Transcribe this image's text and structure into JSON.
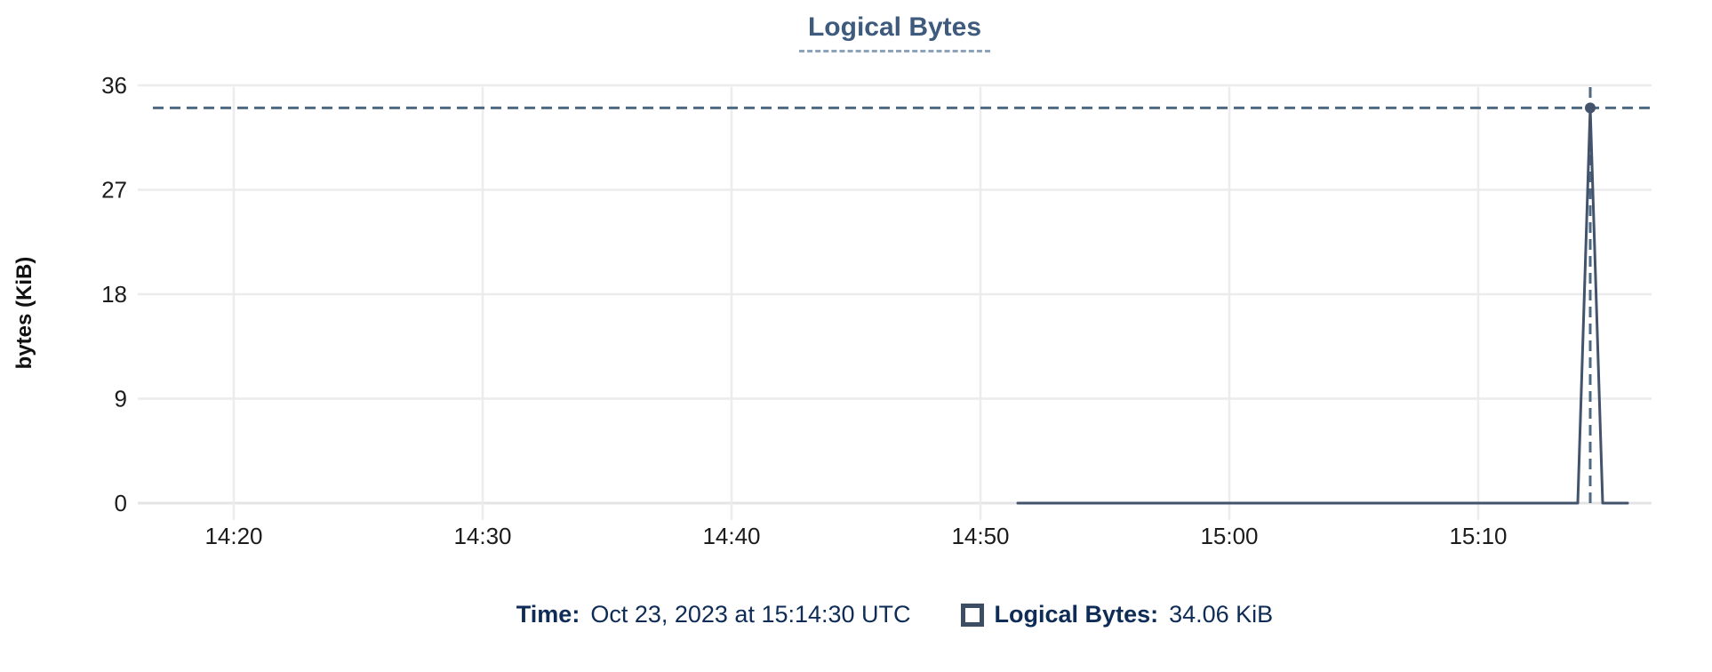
{
  "title": "Logical Bytes",
  "chart_data": {
    "type": "line",
    "title": "Logical Bytes",
    "xlabel": "",
    "ylabel": "bytes (KiB)",
    "unit": "KiB",
    "ylim": [
      0,
      36
    ],
    "y_ticks": [
      0,
      9,
      18,
      27,
      36
    ],
    "x_ticks": [
      "14:20",
      "14:30",
      "14:40",
      "14:50",
      "15:00",
      "15:10"
    ],
    "grid": true,
    "legend_position": "bottom",
    "series": [
      {
        "name": "Logical Bytes",
        "points": [
          {
            "t": "14:51:30",
            "v": 0
          },
          {
            "t": "15:14:00",
            "v": 0
          },
          {
            "t": "15:14:30",
            "v": 34.06
          },
          {
            "t": "15:15:00",
            "v": 0
          },
          {
            "t": "15:16:00",
            "v": 0
          }
        ]
      }
    ],
    "highlight_point": {
      "t": "15:14:30",
      "v": 34.06
    }
  },
  "footer": {
    "time_label": "Time:",
    "time_value": "Oct 23, 2023 at 15:14:30 UTC",
    "series_label": "Logical Bytes:",
    "series_value": "34.06 KiB"
  },
  "colors": {
    "line": "#42536b",
    "marker": "#42536b",
    "crosshair": "#4e6a82",
    "title": "#3e5a7c",
    "title_underline": "#8ca3ba",
    "footer_text": "#0e2c55",
    "grid": "#ececec",
    "axis_line": "#e4e4e4",
    "tick_text": "#1c1c1c",
    "legend_box_border": "#3c4d64"
  }
}
